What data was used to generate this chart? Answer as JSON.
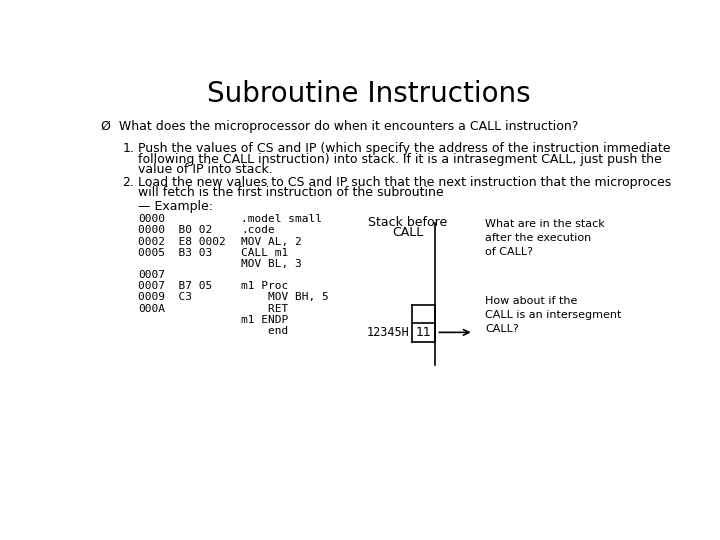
{
  "title": "Subroutine Instructions",
  "title_fontsize": 20,
  "bg_color": "#ffffff",
  "bullet_line": "Ø  What does the microprocessor do when it encounters a CALL instruction?",
  "item1_lines": [
    "Push the values of CS and IP (which specify the address of the instruction immediate",
    "following the CALL instruction) into stack. If it is a intrasegment CALL, just push the",
    "value of IP into stack."
  ],
  "item2_lines": [
    "Load the new values to CS and IP such that the next instruction that the microproces",
    "will fetch is the first instruction of the subroutine"
  ],
  "example_label": "— Example:",
  "stack_label1": "Stack before",
  "stack_label2": "CALL",
  "stack_value": "11",
  "stack_addr": "12345H",
  "right_note1": "What are in the stack\nafter the execution\nof CALL?",
  "right_note2": "How about if the\nCALL is an intersegment\nCALL?"
}
